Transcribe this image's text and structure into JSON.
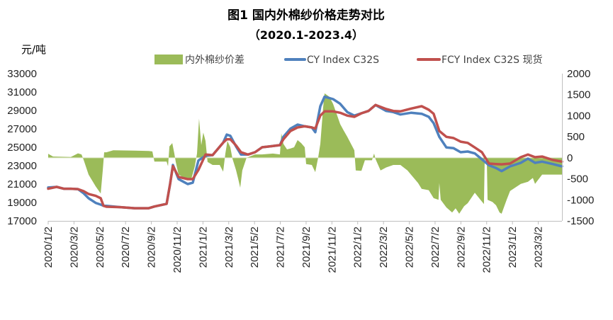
{
  "chart_data": {
    "type": "line",
    "title": "图1 国内外棉纱价格走势对比",
    "subtitle": "（2020.1-2023.4）",
    "ylabel": "元/吨",
    "x_unit": "months since 2020/1/2",
    "xlim": [
      0,
      39.84
    ],
    "ylim": [
      17000,
      33000
    ],
    "y2lim": [
      -1500,
      2000
    ],
    "grid": false,
    "legend_position": "top",
    "y_ticks": [
      "33000",
      "31000",
      "29000",
      "27000",
      "25000",
      "23000",
      "21000",
      "19000",
      "17000"
    ],
    "y2_ticks": [
      "2000",
      "1500",
      "1000",
      "500",
      "0",
      "-500",
      "-1000",
      "-1500"
    ],
    "x_ticks": [
      {
        "at": 0,
        "label": "2020/1/2"
      },
      {
        "at": 2,
        "label": "2020/3/2"
      },
      {
        "at": 4,
        "label": "2020/5/2"
      },
      {
        "at": 6,
        "label": "2020/7/2"
      },
      {
        "at": 8,
        "label": "2020/9/2"
      },
      {
        "at": 10,
        "label": "2020/11/2"
      },
      {
        "at": 12,
        "label": "2021/1/2"
      },
      {
        "at": 14,
        "label": "2021/3/2"
      },
      {
        "at": 16,
        "label": "2021/5/2"
      },
      {
        "at": 18,
        "label": "2021/7/2"
      },
      {
        "at": 20,
        "label": "2021/9/2"
      },
      {
        "at": 22,
        "label": "2021/11/2"
      },
      {
        "at": 24,
        "label": "2022/1/2"
      },
      {
        "at": 26,
        "label": "2022/3/2"
      },
      {
        "at": 28,
        "label": "2022/5/2"
      },
      {
        "at": 30,
        "label": "2022/7/2"
      },
      {
        "at": 32,
        "label": "2022/9/2"
      },
      {
        "at": 34,
        "label": "2022/11/2"
      },
      {
        "at": 36,
        "label": "2023/1/2"
      },
      {
        "at": 38,
        "label": "2023/3/2"
      }
    ],
    "x": [
      0,
      0.66,
      1.21,
      1.76,
      2.31,
      2.75,
      3.13,
      3.68,
      4.07,
      4.29,
      4.51,
      5.6,
      6.7,
      7.8,
      8.24,
      9.18,
      9.45,
      9.67,
      10.11,
      10.82,
      11.21,
      11.65,
      12.2,
      12.75,
      13.57,
      13.85,
      14.12,
      14.56,
      14.95,
      15.49,
      16.04,
      16.59,
      17.42,
      17.97,
      18.24,
      18.79,
      19.34,
      19.89,
      20.44,
      20.71,
      21.1,
      21.43,
      22.09,
      22.64,
      23.19,
      23.74,
      24.29,
      24.84,
      25.38,
      26.21,
      26.76,
      27.31,
      28.13,
      28.96,
      29.51,
      29.89,
      30.33,
      30.88,
      31.43,
      31.98,
      32.53,
      33.08,
      33.63,
      34.18,
      34.73,
      35.16,
      35.82,
      36.65,
      37.2,
      37.75,
      38.3,
      39.12,
      39.84
    ],
    "series": [
      {
        "name": "CY Index C32S",
        "axis": "left",
        "color": "#4f81bd",
        "values": [
          20620,
          20690,
          20490,
          20490,
          20450,
          20000,
          19460,
          18950,
          18770,
          18640,
          18640,
          18490,
          18380,
          18380,
          18560,
          18850,
          21000,
          23080,
          21540,
          21000,
          21150,
          23560,
          24080,
          24150,
          25500,
          26380,
          26250,
          25100,
          24210,
          24210,
          24460,
          25000,
          25130,
          25230,
          26130,
          27020,
          27460,
          27280,
          27150,
          26640,
          29460,
          30490,
          30230,
          29720,
          28820,
          28440,
          28690,
          28950,
          29590,
          28950,
          28820,
          28560,
          28750,
          28640,
          28310,
          27620,
          26130,
          24980,
          24900,
          24460,
          24540,
          24330,
          23690,
          23050,
          22740,
          22410,
          22920,
          23310,
          23770,
          23310,
          23440,
          23180,
          22920
        ]
      },
      {
        "name": "FCY Index C32S 现货",
        "axis": "left",
        "color": "#c0504d",
        "values": [
          20490,
          20690,
          20490,
          20490,
          20450,
          20230,
          19920,
          19720,
          19460,
          18640,
          18540,
          18490,
          18380,
          18380,
          18560,
          18850,
          21000,
          22950,
          21770,
          21540,
          21540,
          22540,
          24210,
          24150,
          25500,
          25870,
          25870,
          25200,
          24460,
          24210,
          24460,
          25000,
          25130,
          25230,
          25870,
          26770,
          27150,
          27280,
          27150,
          27030,
          28440,
          28900,
          28900,
          28750,
          28440,
          28310,
          28690,
          28950,
          29590,
          29150,
          28950,
          28900,
          29200,
          29460,
          29080,
          28640,
          26770,
          26130,
          26000,
          25610,
          25480,
          24980,
          24460,
          23230,
          23180,
          23150,
          23230,
          23920,
          24210,
          23920,
          23990,
          23620,
          23440
        ]
      }
    ],
    "area_series": {
      "name": "内外棉纱价差",
      "axis": "right",
      "color": "#9bbb59",
      "x": [
        0,
        0.38,
        1.76,
        2.03,
        2.31,
        2.58,
        2.75,
        3.13,
        3.68,
        4.07,
        4.23,
        4.34,
        4.51,
        5.05,
        6.7,
        7.8,
        8.08,
        8.24,
        9.18,
        9.29,
        9.4,
        9.62,
        9.78,
        9.89,
        10.11,
        10.55,
        11.1,
        11.37,
        11.54,
        11.7,
        11.87,
        12.03,
        12.2,
        12.36,
        12.75,
        13.3,
        13.57,
        13.74,
        13.9,
        14.12,
        14.29,
        14.56,
        14.73,
        14.89,
        15.05,
        15.38,
        16.04,
        16.59,
        17.42,
        17.97,
        18.08,
        18.24,
        18.52,
        18.79,
        19.07,
        19.34,
        19.62,
        19.89,
        20.0,
        20.44,
        20.71,
        20.93,
        21.1,
        21.32,
        21.43,
        21.81,
        22.09,
        22.36,
        22.64,
        22.91,
        23.19,
        23.74,
        23.85,
        24.29,
        24.56,
        25.11,
        25.27,
        25.38,
        25.77,
        26.21,
        26.76,
        27.31,
        27.86,
        28.13,
        28.68,
        28.96,
        29.51,
        29.89,
        30.27,
        30.33,
        30.44,
        30.88,
        31.32,
        31.59,
        31.87,
        32.25,
        32.53,
        33.08,
        33.52,
        33.79,
        33.85,
        34.01,
        34.07,
        34.45,
        34.73,
        35.0,
        35.16,
        35.55,
        35.82,
        36.65,
        37.2,
        37.58,
        37.75,
        38.3,
        39.12,
        39.84
      ],
      "values": [
        95,
        30,
        20,
        60,
        105,
        80,
        -50,
        -400,
        -680,
        -850,
        -300,
        130,
        130,
        180,
        170,
        160,
        150,
        -90,
        -90,
        -200,
        270,
        350,
        100,
        -100,
        -400,
        -480,
        -500,
        -200,
        100,
        930,
        300,
        600,
        400,
        -100,
        -170,
        -170,
        -330,
        100,
        400,
        250,
        -20,
        -290,
        -500,
        -710,
        -300,
        0,
        80,
        80,
        100,
        80,
        580,
        330,
        200,
        220,
        250,
        420,
        350,
        250,
        -150,
        -170,
        -340,
        0,
        330,
        1200,
        1530,
        1450,
        1280,
        1050,
        800,
        650,
        500,
        180,
        -300,
        -310,
        -60,
        -60,
        100,
        -30,
        -300,
        -230,
        -170,
        -170,
        -300,
        -400,
        -600,
        -740,
        -770,
        -960,
        -1000,
        -600,
        -1000,
        -1180,
        -1300,
        -1200,
        -1330,
        -1150,
        -1080,
        -830,
        -1000,
        -1100,
        0,
        0,
        -1000,
        -1050,
        -1130,
        -1300,
        -1330,
        -1000,
        -790,
        -620,
        -570,
        -480,
        -620,
        -400,
        -400,
        -400
      ]
    }
  }
}
